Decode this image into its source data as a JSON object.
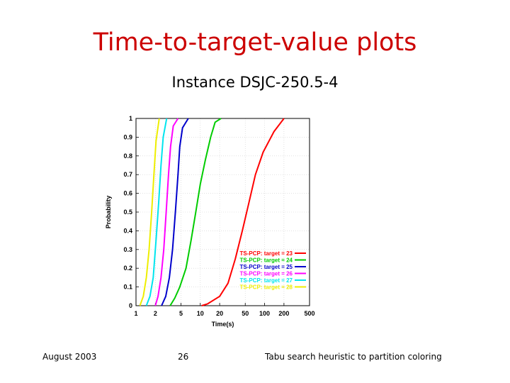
{
  "slide": {
    "title": "Time-to-target-value plots",
    "subtitle": "Instance DSJC-250.5-4",
    "footer_left": "August 2003",
    "footer_center": "26",
    "footer_right": "Tabu search heuristic to partition coloring"
  },
  "chart_data": {
    "type": "line",
    "xlabel": "Time(s)",
    "ylabel": "Probability",
    "x_scale": "log",
    "xlim": [
      1,
      500
    ],
    "ylim": [
      0,
      1
    ],
    "x_ticks": [
      1,
      2,
      5,
      10,
      20,
      50,
      100,
      200,
      500
    ],
    "y_ticks": [
      0,
      0.1,
      0.2,
      0.3,
      0.4,
      0.5,
      0.6,
      0.7,
      0.8,
      0.9,
      1
    ],
    "y_tick_labels": [
      "0",
      "0.1",
      "0.2",
      "0.3",
      "0.4",
      "0.5",
      "0.6",
      "0.7",
      "0.8",
      "0.9",
      "1"
    ],
    "grid": true,
    "legend_position": "bottom-right",
    "series": [
      {
        "name": "TS-PCP: target = 23",
        "color": "#ff0000",
        "points": [
          [
            10.5,
            0
          ],
          [
            13,
            0.01
          ],
          [
            20,
            0.05
          ],
          [
            27,
            0.12
          ],
          [
            35,
            0.25
          ],
          [
            45,
            0.4
          ],
          [
            57,
            0.55
          ],
          [
            72,
            0.7
          ],
          [
            95,
            0.82
          ],
          [
            140,
            0.93
          ],
          [
            200,
            1
          ]
        ]
      },
      {
        "name": "TS-PCP: target = 24",
        "color": "#00cc00",
        "points": [
          [
            3.4,
            0
          ],
          [
            4,
            0.04
          ],
          [
            4.8,
            0.1
          ],
          [
            6,
            0.2
          ],
          [
            7.2,
            0.35
          ],
          [
            8.5,
            0.5
          ],
          [
            10,
            0.65
          ],
          [
            12,
            0.78
          ],
          [
            14.5,
            0.9
          ],
          [
            17,
            0.98
          ],
          [
            21,
            1
          ]
        ]
      },
      {
        "name": "TS-PCP: target = 25",
        "color": "#0000cc",
        "points": [
          [
            2.5,
            0
          ],
          [
            2.9,
            0.05
          ],
          [
            3.3,
            0.15
          ],
          [
            3.7,
            0.3
          ],
          [
            4.1,
            0.5
          ],
          [
            4.5,
            0.7
          ],
          [
            4.8,
            0.85
          ],
          [
            5.3,
            0.95
          ],
          [
            6.5,
            1
          ]
        ]
      },
      {
        "name": "TS-PCP: target = 26",
        "color": "#ff00ff",
        "points": [
          [
            2,
            0
          ],
          [
            2.2,
            0.05
          ],
          [
            2.45,
            0.15
          ],
          [
            2.7,
            0.3
          ],
          [
            2.95,
            0.5
          ],
          [
            3.2,
            0.7
          ],
          [
            3.45,
            0.85
          ],
          [
            3.8,
            0.96
          ],
          [
            4.5,
            1
          ]
        ]
      },
      {
        "name": "TS-PCP: target = 27",
        "color": "#00e5ee",
        "points": [
          [
            1.45,
            0
          ],
          [
            1.65,
            0.05
          ],
          [
            1.85,
            0.15
          ],
          [
            2.05,
            0.35
          ],
          [
            2.25,
            0.55
          ],
          [
            2.45,
            0.75
          ],
          [
            2.65,
            0.9
          ],
          [
            3,
            1
          ]
        ]
      },
      {
        "name": "TS-PCP: target = 28",
        "color": "#eeee00",
        "points": [
          [
            1.15,
            0
          ],
          [
            1.3,
            0.05
          ],
          [
            1.45,
            0.15
          ],
          [
            1.6,
            0.3
          ],
          [
            1.75,
            0.5
          ],
          [
            1.9,
            0.7
          ],
          [
            2.05,
            0.88
          ],
          [
            2.3,
            1
          ]
        ]
      }
    ]
  }
}
